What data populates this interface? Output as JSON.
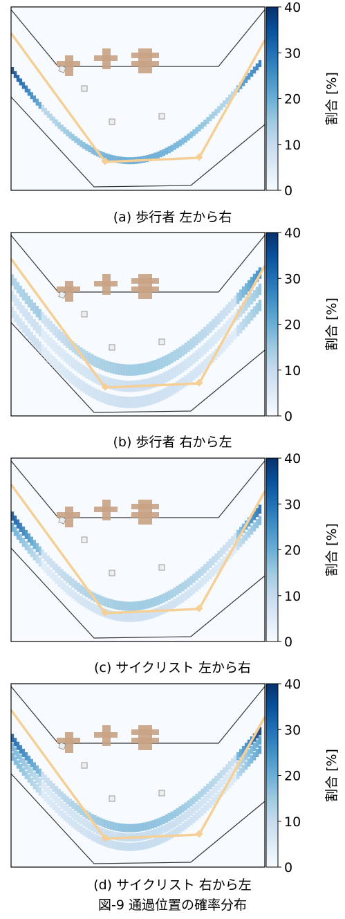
{
  "figure_title": "図-9 通過位置の確率分布",
  "colorbar": {
    "label": "割合 [%]",
    "ticks": [
      "0",
      "10",
      "20",
      "30",
      "40"
    ],
    "range": [
      0,
      40
    ],
    "colormap": "Blues",
    "low_color": "#f7fbff",
    "high_color": "#08306b"
  },
  "colors": {
    "path": "#f5cf96",
    "furniture": "#c8a284",
    "outline": "#333333"
  },
  "chart_data": [
    {
      "type": "heatmap",
      "caption": "(a) 歩行者 左から右",
      "band": {
        "start_peak": 38,
        "body_peak": 22,
        "end_peak": 30,
        "width": "narrow",
        "spread": 1.0,
        "lane_count": 1
      }
    },
    {
      "type": "heatmap",
      "caption": "(b) 歩行者 右から左",
      "band": {
        "start_peak": 14,
        "body_peak": 16,
        "end_peak": 28,
        "width": "wide",
        "spread": 2.6,
        "lane_count": 3
      }
    },
    {
      "type": "heatmap",
      "caption": "(c) サイクリスト 左から右",
      "band": {
        "start_peak": 36,
        "body_peak": 16,
        "end_peak": 32,
        "width": "medium",
        "spread": 1.8,
        "lane_count": 2
      }
    },
    {
      "type": "heatmap",
      "caption": "(d) サイクリスト 右から左",
      "band": {
        "start_peak": 34,
        "body_peak": 18,
        "end_peak": 40,
        "width": "medium",
        "spread": 1.5,
        "lane_count": 3
      }
    }
  ]
}
